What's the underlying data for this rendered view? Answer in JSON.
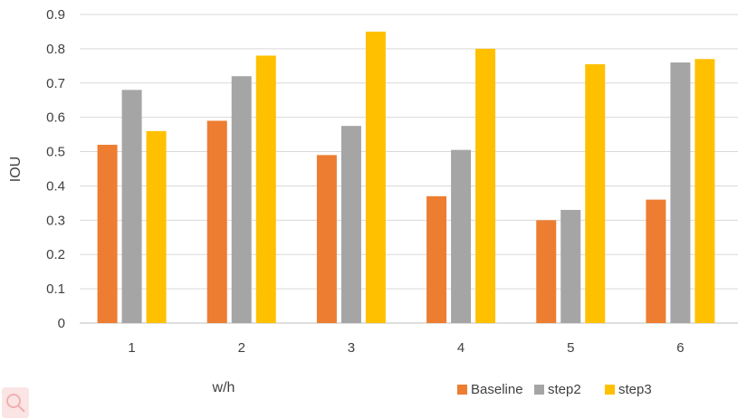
{
  "chart_data": {
    "type": "bar",
    "categories": [
      "1",
      "2",
      "3",
      "4",
      "5",
      "6"
    ],
    "series": [
      {
        "name": "Baseline",
        "color": "#ed7d31",
        "values": [
          0.52,
          0.59,
          0.49,
          0.37,
          0.3,
          0.36
        ]
      },
      {
        "name": "step2",
        "color": "#a5a5a5",
        "values": [
          0.68,
          0.72,
          0.575,
          0.505,
          0.33,
          0.76
        ]
      },
      {
        "name": "step3",
        "color": "#ffc000",
        "values": [
          0.56,
          0.78,
          0.85,
          0.8,
          0.755,
          0.77
        ]
      }
    ],
    "xlabel": "w/h",
    "ylabel": "IOU",
    "ylim": [
      0,
      0.9
    ],
    "yticks": [
      "0",
      "0.1",
      "0.2",
      "0.3",
      "0.4",
      "0.5",
      "0.6",
      "0.7",
      "0.8",
      "0.9"
    ],
    "grid": true,
    "legend_position": "bottom-right"
  }
}
